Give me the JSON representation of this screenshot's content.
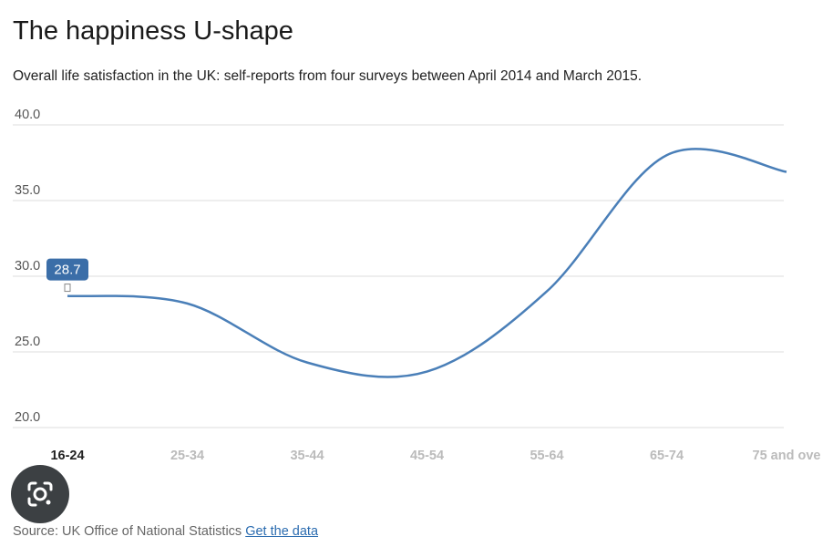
{
  "title": "The happiness U-shape",
  "subtitle": "Overall life satisfaction in the UK: self-reports from four surveys between April 2014 and March 2015.",
  "source_text": "Source: UK Office of National Statistics",
  "source_link": "Get the data",
  "colors": {
    "line": "#4a7fb8",
    "label_bg": "#3b6ea8",
    "grid": "#dddddd"
  },
  "icons": {
    "lens": "google-lens-icon"
  },
  "chart_data": {
    "type": "line",
    "title": "The happiness U-shape",
    "subtitle": "Overall life satisfaction in the UK: self-reports from four surveys between April 2014 and March 2015.",
    "categories": [
      "16-24",
      "25-34",
      "35-44",
      "45-54",
      "55-64",
      "65-74",
      "75 and ove"
    ],
    "series": [
      {
        "values": [
          28.7,
          28.2,
          24.3,
          23.7,
          29.0,
          38.0,
          36.9
        ]
      }
    ],
    "ylim": [
      20,
      40
    ],
    "yticks": [
      "20.0",
      "25.0",
      "30.0",
      "35.0",
      "40.0"
    ],
    "grid": true,
    "highlighted_category": "16-24",
    "highlighted_label": "28.7",
    "xlabel": "",
    "ylabel": ""
  }
}
